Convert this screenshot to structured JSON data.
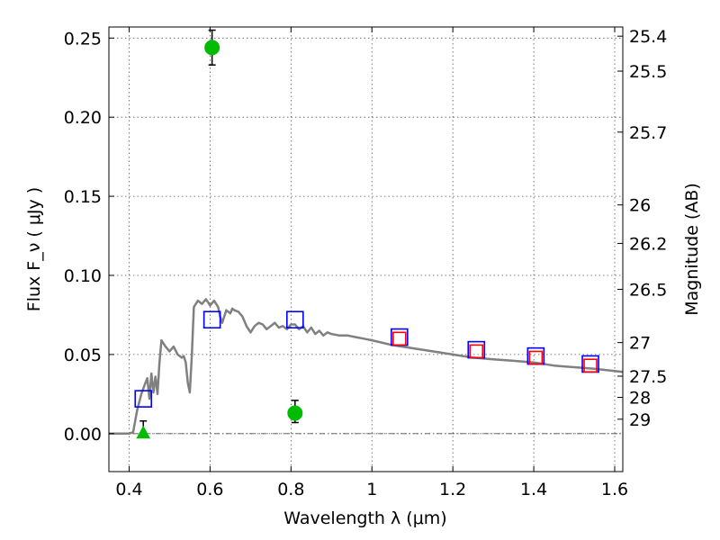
{
  "chart_data": {
    "type": "scatter",
    "xlabel": "Wavelength  λ (μm)",
    "ylabel": "Flux  F_ν  ( μJy )",
    "ylabel2": "Magnitude (AB)",
    "xlim": [
      0.35,
      1.62
    ],
    "ylim": [
      -0.024,
      0.257
    ],
    "grid": true,
    "x_ticks": [
      0.4,
      0.6,
      0.8,
      1.0,
      1.2,
      1.4,
      1.6
    ],
    "x_tick_labels": [
      "0.4",
      "0.6",
      "0.8",
      "1",
      "1.2",
      "1.4",
      "1.6"
    ],
    "y_ticks": [
      0.0,
      0.05,
      0.1,
      0.15,
      0.2,
      0.25
    ],
    "y_tick_labels": [
      "0.00",
      "0.05",
      "0.10",
      "0.15",
      "0.20",
      "0.25"
    ],
    "mag_ticks": [
      {
        "label": "25.4",
        "mag": 25.4
      },
      {
        "label": "25.5",
        "mag": 25.5
      },
      {
        "label": "25.7",
        "mag": 25.7
      },
      {
        "label": "26",
        "mag": 26.0
      },
      {
        "label": "26.2",
        "mag": 26.2
      },
      {
        "label": "26.5",
        "mag": 26.5
      },
      {
        "label": "27",
        "mag": 27.0
      },
      {
        "label": "27.5",
        "mag": 27.5
      },
      {
        "label": "28",
        "mag": 28.0
      },
      {
        "label": "29",
        "mag": 29.0
      }
    ],
    "series": [
      {
        "kind": "line",
        "color": "#808080",
        "x": [
          0.35,
          0.4,
          0.41,
          0.415,
          0.42,
          0.43,
          0.44,
          0.445,
          0.45,
          0.455,
          0.46,
          0.465,
          0.47,
          0.475,
          0.48,
          0.49,
          0.5,
          0.51,
          0.52,
          0.53,
          0.535,
          0.54,
          0.545,
          0.55,
          0.555,
          0.56,
          0.57,
          0.58,
          0.59,
          0.6,
          0.61,
          0.62,
          0.625,
          0.63,
          0.64,
          0.65,
          0.655,
          0.66,
          0.67,
          0.68,
          0.69,
          0.7,
          0.71,
          0.72,
          0.73,
          0.74,
          0.75,
          0.76,
          0.77,
          0.78,
          0.79,
          0.8,
          0.81,
          0.82,
          0.83,
          0.84,
          0.85,
          0.86,
          0.87,
          0.88,
          0.89,
          0.9,
          0.92,
          0.94,
          0.96,
          0.98,
          1.0,
          1.05,
          1.1,
          1.15,
          1.2,
          1.25,
          1.3,
          1.35,
          1.4,
          1.45,
          1.5,
          1.55,
          1.62
        ],
        "y": [
          0.0,
          0.0,
          0.001,
          0.008,
          0.015,
          0.025,
          0.032,
          0.035,
          0.022,
          0.038,
          0.026,
          0.036,
          0.025,
          0.045,
          0.059,
          0.055,
          0.052,
          0.055,
          0.05,
          0.048,
          0.049,
          0.045,
          0.032,
          0.026,
          0.05,
          0.08,
          0.084,
          0.082,
          0.085,
          0.081,
          0.084,
          0.08,
          0.074,
          0.07,
          0.078,
          0.076,
          0.079,
          0.078,
          0.077,
          0.074,
          0.068,
          0.064,
          0.068,
          0.07,
          0.069,
          0.066,
          0.068,
          0.07,
          0.067,
          0.068,
          0.066,
          0.069,
          0.069,
          0.066,
          0.068,
          0.064,
          0.067,
          0.063,
          0.065,
          0.062,
          0.064,
          0.063,
          0.062,
          0.062,
          0.061,
          0.06,
          0.059,
          0.056,
          0.054,
          0.052,
          0.05,
          0.048,
          0.047,
          0.046,
          0.045,
          0.043,
          0.042,
          0.041,
          0.039
        ]
      },
      {
        "kind": "scatter",
        "marker": "square-open",
        "color": "#0000ff",
        "x": [
          0.435,
          0.605,
          0.81,
          1.068,
          1.258,
          1.405,
          1.54
        ],
        "y": [
          0.022,
          0.072,
          0.072,
          0.061,
          0.053,
          0.049,
          0.044
        ]
      },
      {
        "kind": "scatter",
        "marker": "square-open",
        "color": "#ff0000",
        "x": [
          1.068,
          1.258,
          1.405,
          1.54
        ],
        "y": [
          0.06,
          0.052,
          0.048,
          0.043
        ]
      },
      {
        "kind": "errorbar",
        "marker": "circle",
        "color": "#00bb00",
        "x": [
          0.605,
          0.81
        ],
        "y": [
          0.244,
          0.013
        ],
        "yerr_low": [
          0.011,
          0.006
        ],
        "yerr_high": [
          0.011,
          0.008
        ]
      },
      {
        "kind": "upper-limit",
        "marker": "triangle-up",
        "color": "#00bb00",
        "x": [
          0.435
        ],
        "y": [
          0.0
        ],
        "yerr_high": [
          0.008
        ]
      }
    ]
  }
}
